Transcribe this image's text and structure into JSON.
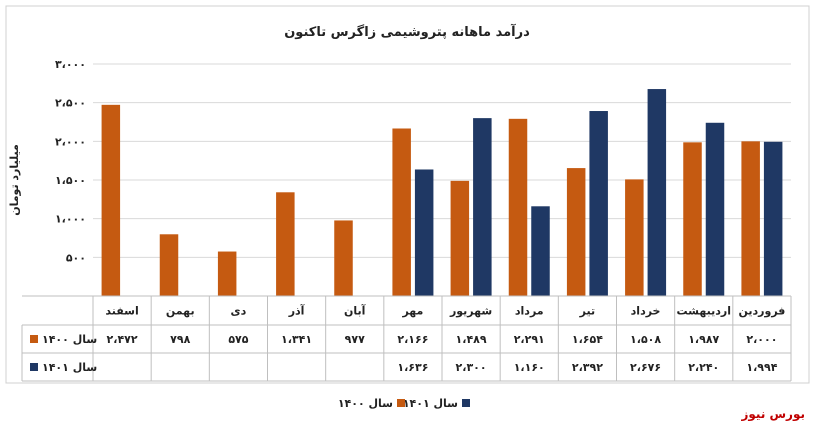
{
  "chart_data": {
    "type": "bar",
    "title": "درآمد ماهانه پتروشیمی زاگرس تاکنون",
    "ylabel": "میلیارد تومان",
    "ylim": [
      0,
      3000
    ],
    "yticks": [
      {
        "value": 500,
        "label": "۵۰۰"
      },
      {
        "value": 1000,
        "label": "۱،۰۰۰"
      },
      {
        "value": 1500,
        "label": "۱،۵۰۰"
      },
      {
        "value": 2000,
        "label": "۲،۰۰۰"
      },
      {
        "value": 2500,
        "label": "۲،۵۰۰"
      },
      {
        "value": 3000,
        "label": "۳،۰۰۰"
      }
    ],
    "grid": true,
    "legend_position": "bottom",
    "categories": [
      "فروردین",
      "اردیبهشت",
      "خرداد",
      "تیر",
      "مرداد",
      "شهریور",
      "مهر",
      "آبان",
      "آذر",
      "دی",
      "بهمن",
      "اسفند"
    ],
    "series": [
      {
        "name": "سال ۱۴۰۰",
        "color": "#C55A11",
        "values": [
          2000,
          1987,
          1508,
          1654,
          2291,
          1489,
          2166,
          977,
          1341,
          575,
          798,
          2472
        ],
        "labels": [
          "۲،۰۰۰",
          "۱،۹۸۷",
          "۱،۵۰۸",
          "۱،۶۵۴",
          "۲،۲۹۱",
          "۱،۴۸۹",
          "۲،۱۶۶",
          "۹۷۷",
          "۱،۳۴۱",
          "۵۷۵",
          "۷۹۸",
          "۲،۴۷۲"
        ]
      },
      {
        "name": "سال ۱۴۰۱",
        "color": "#1F3864",
        "values": [
          1994,
          2240,
          2676,
          2392,
          1160,
          2300,
          1636,
          null,
          null,
          null,
          null,
          null
        ],
        "labels": [
          "۱،۹۹۴",
          "۲،۲۴۰",
          "۲،۶۷۶",
          "۲،۳۹۲",
          "۱،۱۶۰",
          "۲،۳۰۰",
          "۱،۶۳۶",
          "",
          "",
          "",
          "",
          ""
        ]
      }
    ]
  },
  "branding": {
    "text": "بورس نیوز"
  }
}
